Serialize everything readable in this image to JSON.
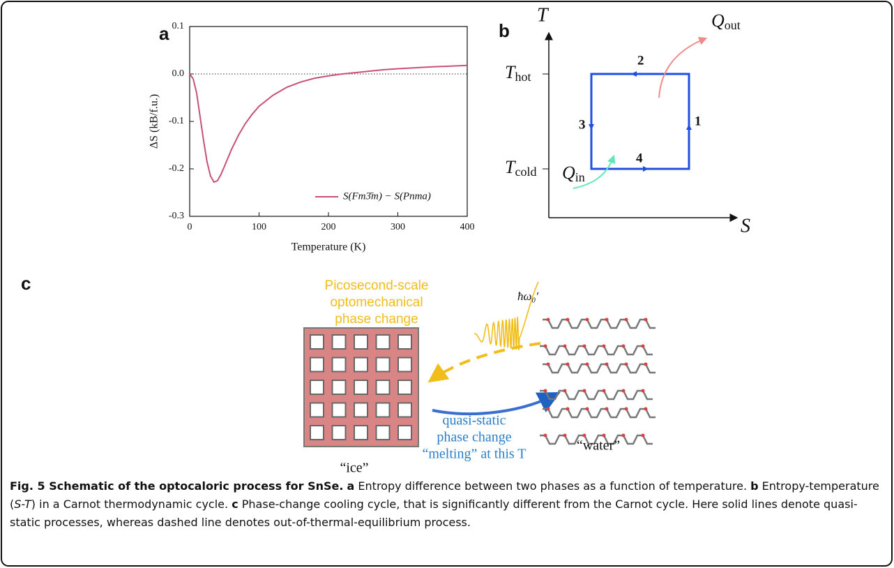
{
  "chart_data": {
    "type": "line",
    "panel_label": "a",
    "x_label": "Temperature (K)",
    "y_label": "ΔS (kB/f.u.)",
    "x": [
      0,
      5,
      10,
      15,
      20,
      25,
      30,
      35,
      40,
      45,
      50,
      60,
      70,
      80,
      90,
      100,
      120,
      140,
      160,
      180,
      200,
      220,
      240,
      260,
      280,
      300,
      350,
      400
    ],
    "series": [
      {
        "name": "S(Fm3̄m) − S(Pnma)",
        "color": "#c8507a",
        "values": [
          0,
          -0.01,
          -0.04,
          -0.09,
          -0.14,
          -0.185,
          -0.215,
          -0.228,
          -0.225,
          -0.212,
          -0.195,
          -0.16,
          -0.13,
          -0.105,
          -0.085,
          -0.068,
          -0.045,
          -0.028,
          -0.017,
          -0.009,
          -0.004,
          0.0,
          0.003,
          0.006,
          0.009,
          0.011,
          0.015,
          0.018
        ]
      }
    ],
    "xlim": [
      0,
      400
    ],
    "ylim": [
      -0.3,
      0.1
    ],
    "xticks": [
      0,
      100,
      200,
      300,
      400
    ],
    "yticks": [
      0.1,
      {
        "value": 0,
        "label": "0.0"
      },
      -0.1,
      -0.2,
      -0.3
    ],
    "zero_line": true,
    "legend": "bottom-right"
  },
  "cycle": {
    "panel_label": "b",
    "y_axis": "T",
    "x_axis": "S",
    "t_hot": {
      "symbol": "T",
      "sub": "hot"
    },
    "t_cold": {
      "symbol": "T",
      "sub": "cold"
    },
    "q_out": {
      "symbol": "Q",
      "sub": "out"
    },
    "q_in": {
      "symbol": "Q",
      "sub": "in"
    },
    "steps": [
      "1",
      "2",
      "3",
      "4"
    ]
  },
  "process": {
    "panel_label": "c",
    "optical_label": [
      "Picosecond-scale",
      "optomechanical",
      "phase change"
    ],
    "photon": "ħω₀′",
    "water": "“water”",
    "ice": "“ice”",
    "quasi_static_label": [
      "quasi-static",
      "phase change",
      "“melting” at this T"
    ]
  },
  "caption": [
    {
      "text": "Fig. 5 Schematic of the optocaloric process for SnSe.",
      "style": "bold"
    },
    {
      "text": " ",
      "style": "normal"
    },
    {
      "text": "a",
      "style": "bold"
    },
    {
      "text": " Entropy difference between two phases as a function of temperature. ",
      "style": "normal"
    },
    {
      "text": "b",
      "style": "bold"
    },
    {
      "text": " Entropy-temperature (",
      "style": "normal"
    },
    {
      "text": "S-T",
      "style": "italic"
    },
    {
      "text": ") in a Carnot thermodynamic cycle. ",
      "style": "normal"
    },
    {
      "text": "c",
      "style": "bold"
    },
    {
      "text": " Phase-change cooling cycle, that is significantly different from the Carnot cycle. Here solid lines denote quasi-static processes, whereas dashed line denotes out-of-thermal-equilibrium process.",
      "style": "normal"
    }
  ]
}
